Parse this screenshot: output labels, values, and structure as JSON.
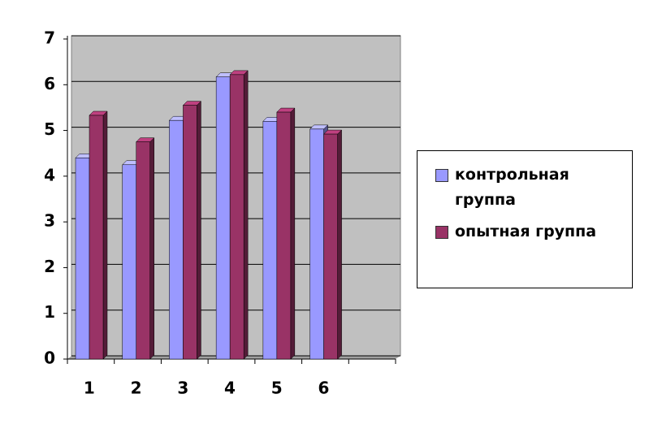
{
  "chart_data": {
    "type": "bar",
    "categories": [
      "1",
      "2",
      "3",
      "4",
      "5",
      "6",
      null
    ],
    "series": [
      {
        "name": "контрольная группа",
        "color": "#9999ff",
        "values": [
          4.4,
          4.25,
          5.22,
          6.17,
          5.2,
          5.03,
          null
        ]
      },
      {
        "name": "опытная группа",
        "color": "#993366",
        "values": [
          5.33,
          4.75,
          5.55,
          6.22,
          5.4,
          4.92,
          null
        ]
      }
    ],
    "ylim": [
      0,
      7
    ],
    "yticks": [
      0,
      1,
      2,
      3,
      4,
      5,
      6,
      7
    ],
    "grid": true,
    "legend": "right"
  }
}
